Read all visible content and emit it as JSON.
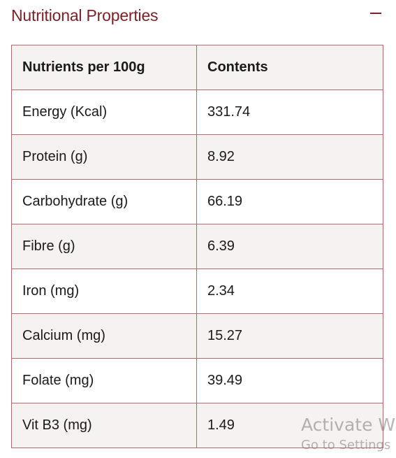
{
  "section": {
    "title": "Nutritional Properties",
    "collapse_icon": "minus-icon"
  },
  "colors": {
    "accent": "#7a2228",
    "border": "#b5676b",
    "row_alt": "#f6f2f1"
  },
  "table": {
    "headers": [
      "Nutrients per 100g",
      "Contents"
    ],
    "rows": [
      [
        "Energy (Kcal)",
        "331.74"
      ],
      [
        "Protein (g)",
        "8.92"
      ],
      [
        "Carbohydrate (g)",
        "66.19"
      ],
      [
        "Fibre (g)",
        "6.39"
      ],
      [
        "Iron (mg)",
        "2.34"
      ],
      [
        "Calcium (mg)",
        "15.27"
      ],
      [
        "Folate (mg)",
        "39.49"
      ],
      [
        "Vit B3 (mg)",
        "1.49"
      ]
    ]
  },
  "watermark": {
    "line1": "Activate W",
    "line2": "Go to Settings"
  }
}
